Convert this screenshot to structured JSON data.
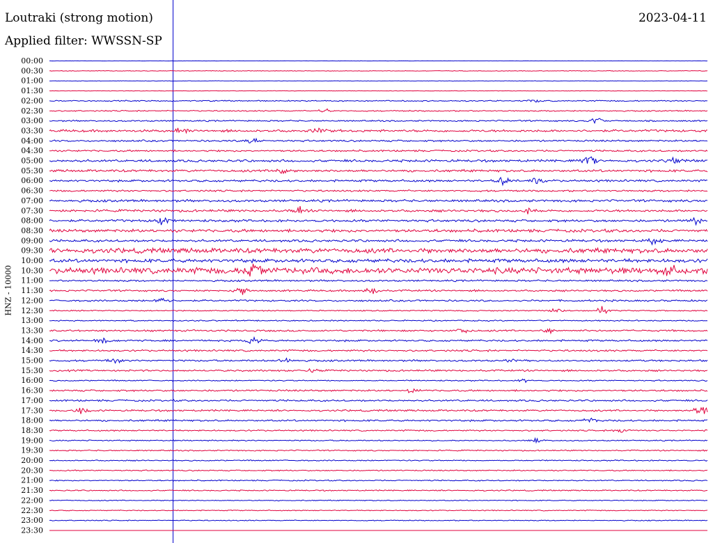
{
  "header": {
    "title": "Loutraki (strong motion)",
    "filter": "Applied filter: WWSSN-SP",
    "date": "2023-04-11"
  },
  "chart_data": {
    "type": "line",
    "title": "Loutraki (strong motion)",
    "subtitle": "Applied filter: WWSSN-SP",
    "date": "2023-04-11",
    "ylabel": "HNZ - 10000",
    "row_interval_minutes": 30,
    "colors": [
      "#0000cc",
      "#e0003c"
    ],
    "rows": [
      "00:00",
      "00:30",
      "01:00",
      "01:30",
      "02:00",
      "02:30",
      "03:00",
      "03:30",
      "04:00",
      "04:30",
      "05:00",
      "05:30",
      "06:00",
      "06:30",
      "07:00",
      "07:30",
      "08:00",
      "08:30",
      "09:00",
      "09:30",
      "10:00",
      "10:30",
      "11:00",
      "11:30",
      "12:00",
      "12:30",
      "13:00",
      "13:30",
      "14:00",
      "14:30",
      "15:00",
      "15:30",
      "16:00",
      "16:30",
      "17:00",
      "17:30",
      "18:00",
      "18:30",
      "19:00",
      "19:30",
      "20:00",
      "20:30",
      "21:00",
      "21:30",
      "22:00",
      "22:30",
      "23:00",
      "23:30"
    ],
    "noise_level": [
      0.2,
      0.5,
      0.3,
      0.4,
      1,
      1,
      1.2,
      2,
      1.5,
      1.5,
      2,
      2,
      1.8,
      1.5,
      2,
      2,
      2,
      2.5,
      2,
      4,
      3,
      5,
      1.5,
      1.5,
      1.5,
      1,
      1,
      1.5,
      1.5,
      1.5,
      1.5,
      1.5,
      1,
      1.5,
      1.5,
      1.5,
      1.5,
      1.2,
      1,
      1,
      1,
      1,
      1,
      1,
      0.8,
      0.8,
      0.8,
      0
    ],
    "events": [
      {
        "row": "02:00",
        "t": 0.74,
        "amp": 2
      },
      {
        "row": "02:30",
        "t": 0.42,
        "amp": 4
      },
      {
        "row": "03:00",
        "t": 0.83,
        "amp": 6
      },
      {
        "row": "03:30",
        "t": 0.2,
        "amp": 4
      },
      {
        "row": "03:30",
        "t": 0.41,
        "amp": 4
      },
      {
        "row": "04:00",
        "t": 0.31,
        "amp": 5
      },
      {
        "row": "05:00",
        "t": 0.82,
        "amp": 8
      },
      {
        "row": "05:00",
        "t": 0.95,
        "amp": 5
      },
      {
        "row": "05:30",
        "t": 0.35,
        "amp": 6
      },
      {
        "row": "06:00",
        "t": 0.69,
        "amp": 6
      },
      {
        "row": "06:00",
        "t": 0.74,
        "amp": 6
      },
      {
        "row": "07:30",
        "t": 0.38,
        "amp": 6
      },
      {
        "row": "07:30",
        "t": 0.73,
        "amp": 6
      },
      {
        "row": "08:00",
        "t": 0.17,
        "amp": 6
      },
      {
        "row": "08:00",
        "t": 0.98,
        "amp": 6
      },
      {
        "row": "09:00",
        "t": 0.92,
        "amp": 8
      },
      {
        "row": "10:30",
        "t": 0.31,
        "amp": 9
      },
      {
        "row": "10:30",
        "t": 0.94,
        "amp": 10
      },
      {
        "row": "11:30",
        "t": 0.29,
        "amp": 8
      },
      {
        "row": "11:30",
        "t": 0.49,
        "amp": 6
      },
      {
        "row": "12:00",
        "t": 0.17,
        "amp": 6
      },
      {
        "row": "12:30",
        "t": 0.77,
        "amp": 5
      },
      {
        "row": "12:30",
        "t": 0.84,
        "amp": 6
      },
      {
        "row": "13:30",
        "t": 0.63,
        "amp": 4
      },
      {
        "row": "13:30",
        "t": 0.76,
        "amp": 6
      },
      {
        "row": "14:00",
        "t": 0.08,
        "amp": 5
      },
      {
        "row": "14:00",
        "t": 0.31,
        "amp": 7
      },
      {
        "row": "15:00",
        "t": 0.1,
        "amp": 4
      },
      {
        "row": "15:00",
        "t": 0.36,
        "amp": 5
      },
      {
        "row": "15:00",
        "t": 0.7,
        "amp": 5
      },
      {
        "row": "15:30",
        "t": 0.4,
        "amp": 4
      },
      {
        "row": "16:00",
        "t": 0.72,
        "amp": 3
      },
      {
        "row": "16:30",
        "t": 0.55,
        "amp": 4
      },
      {
        "row": "17:30",
        "t": 0.05,
        "amp": 5
      },
      {
        "row": "17:30",
        "t": 0.99,
        "amp": 9
      },
      {
        "row": "18:00",
        "t": 0.82,
        "amp": 4
      },
      {
        "row": "18:30",
        "t": 0.87,
        "amp": 5
      },
      {
        "row": "19:00",
        "t": 0.74,
        "amp": 3
      }
    ],
    "marker_t": 0.19
  }
}
